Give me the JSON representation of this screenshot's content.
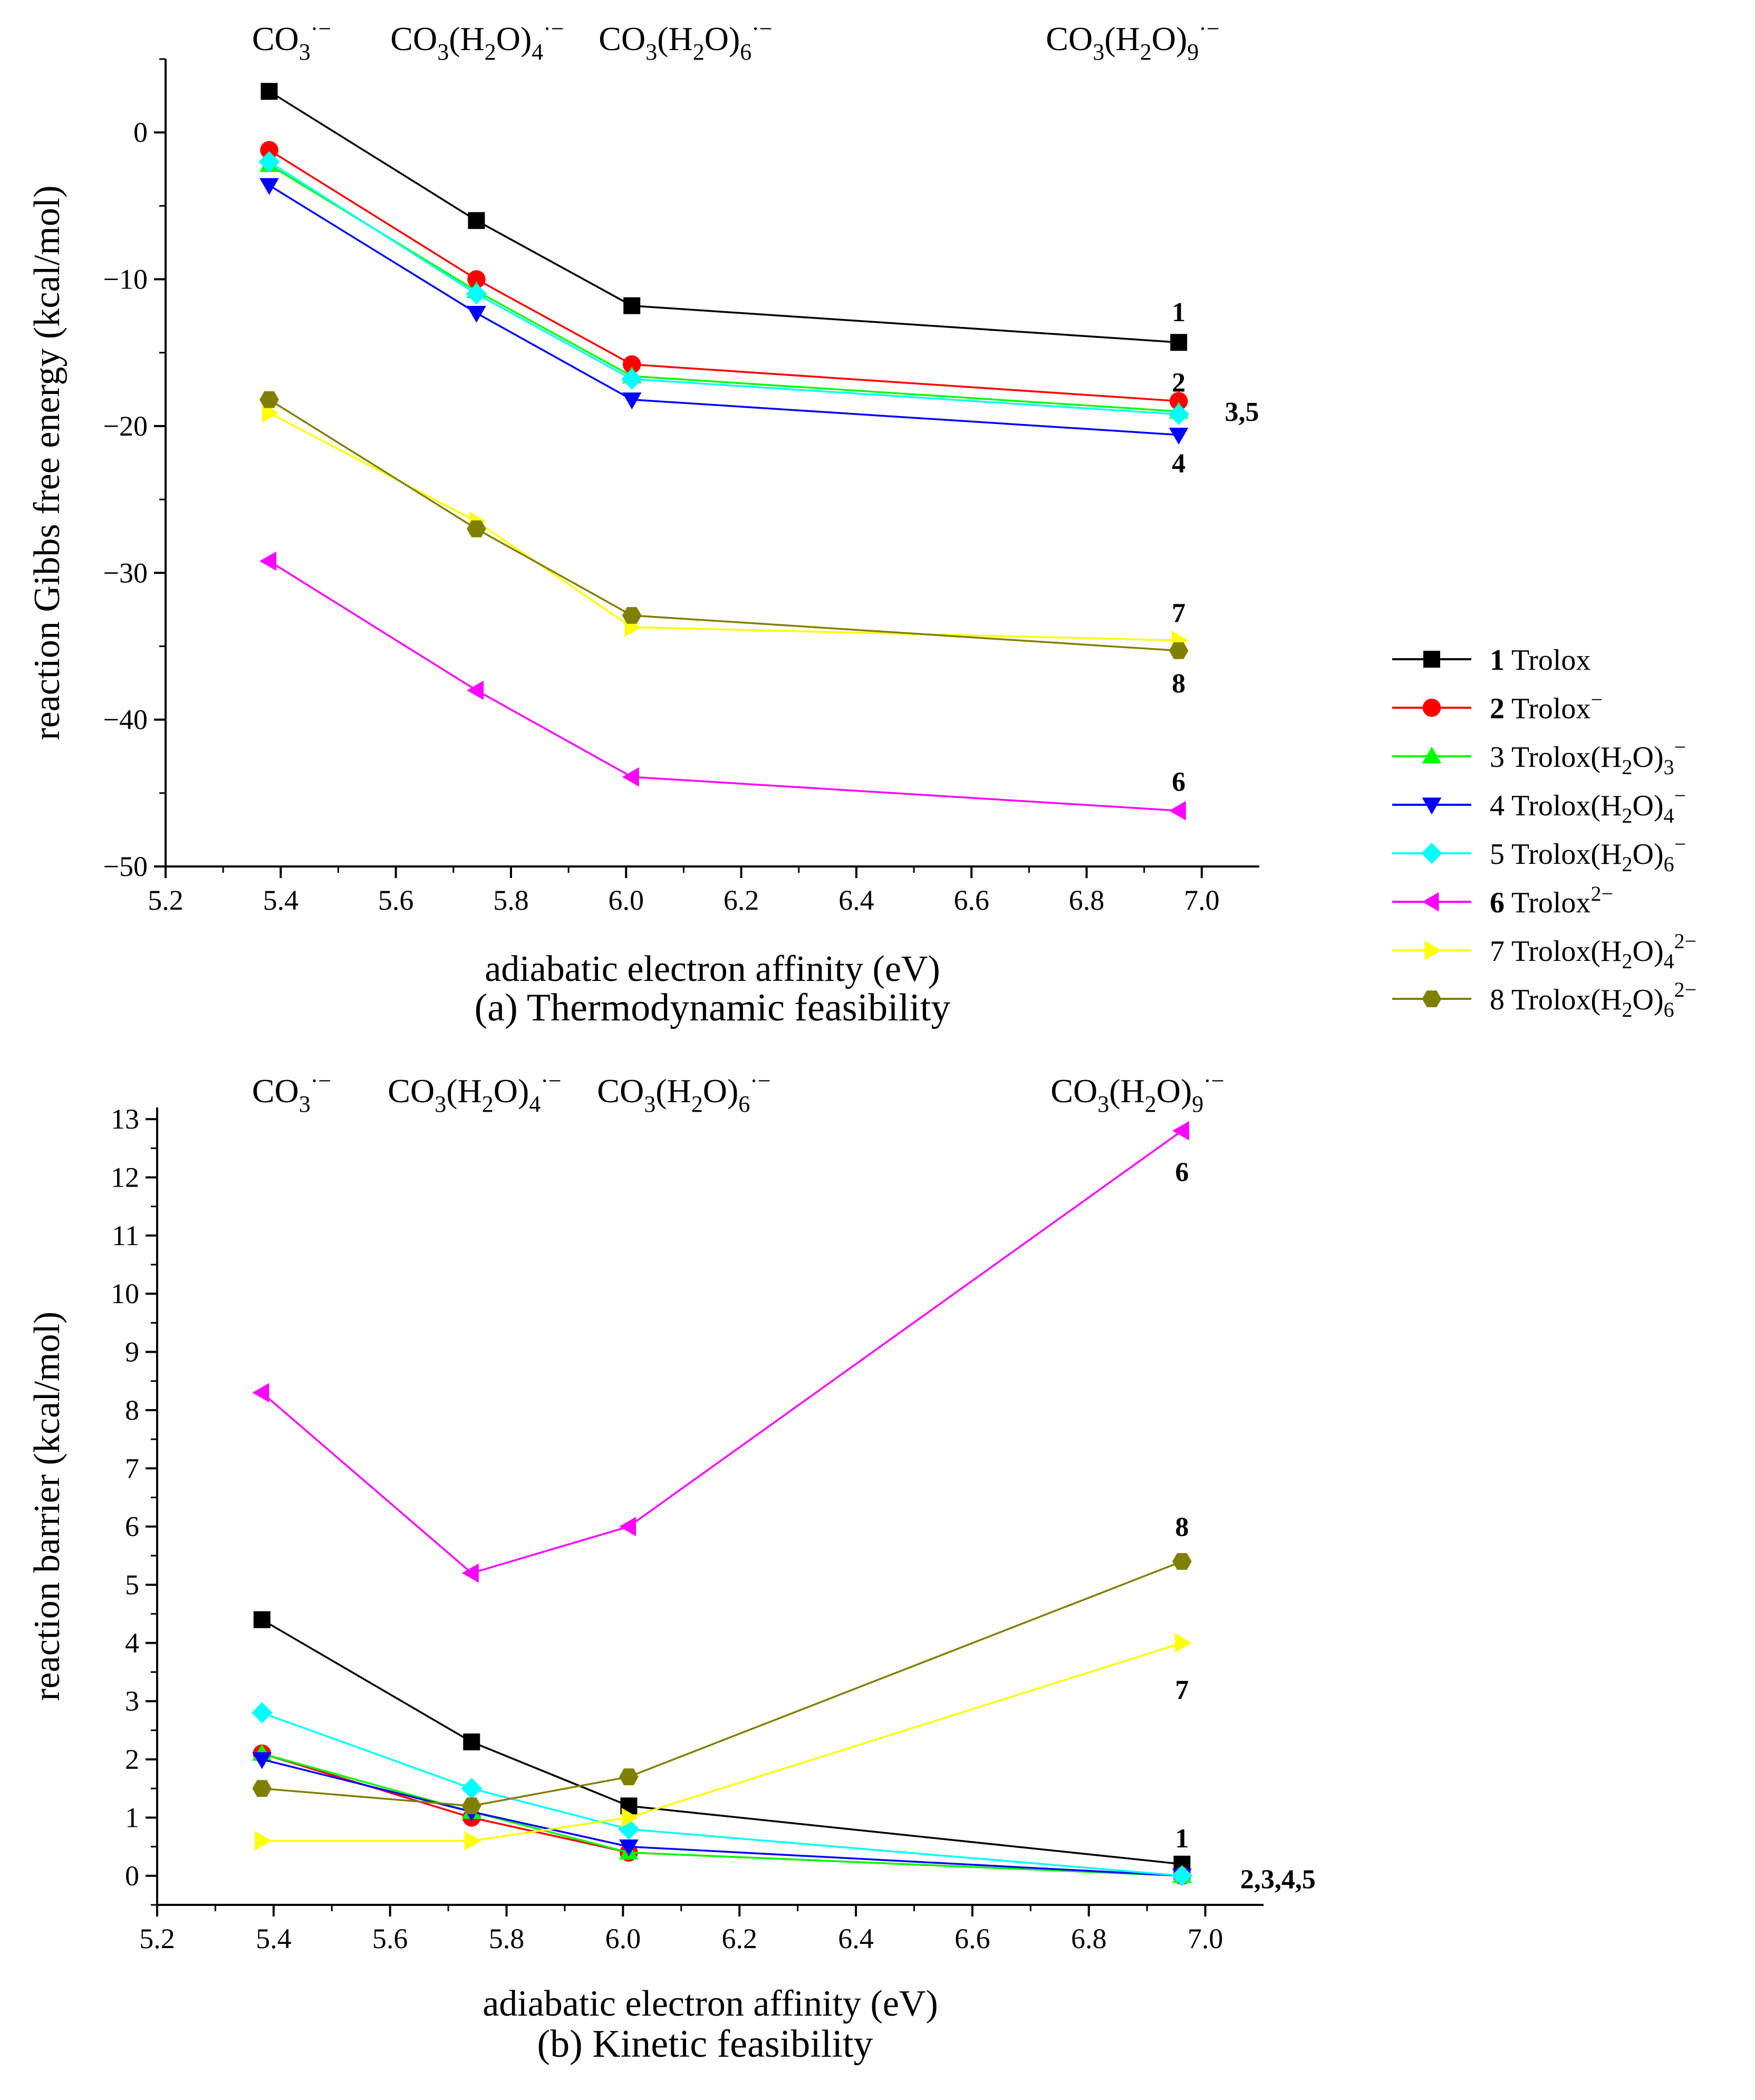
{
  "colors": {
    "1": "#000000",
    "2": "#ff0000",
    "3": "#00ff00",
    "4": "#0000ff",
    "5": "#00ffff",
    "6": "#ff00ff",
    "7": "#ffff00",
    "8": "#808000"
  },
  "legend": [
    {
      "id": "1",
      "num": "1",
      "bold": true,
      "base": "Trolox",
      "sub": "",
      "sup": "",
      "marker": "square"
    },
    {
      "id": "2",
      "num": "2",
      "bold": true,
      "base": "Trolox",
      "sub": "",
      "sup": "−",
      "marker": "circle"
    },
    {
      "id": "3",
      "num": "3",
      "bold": false,
      "base": "Trolox(H",
      "mid": "O)",
      "h2": "2",
      "sub": "3",
      "sup": "−",
      "marker": "triangle-up"
    },
    {
      "id": "4",
      "num": "4",
      "bold": false,
      "base": "Trolox(H",
      "mid": "O)",
      "h2": "2",
      "sub": "4",
      "sup": "−",
      "marker": "triangle-down"
    },
    {
      "id": "5",
      "num": "5",
      "bold": false,
      "base": "Trolox(H",
      "mid": "O)",
      "h2": "2",
      "sub": "6",
      "sup": "−",
      "marker": "diamond"
    },
    {
      "id": "6",
      "num": "6",
      "bold": true,
      "base": "Trolox",
      "sub": "",
      "sup": "2−",
      "marker": "triangle-left"
    },
    {
      "id": "7",
      "num": "7",
      "bold": false,
      "base": "Trolox(H",
      "mid": "O)",
      "h2": "2",
      "sub": "4",
      "sup": "2−",
      "marker": "triangle-right"
    },
    {
      "id": "8",
      "num": "8",
      "bold": false,
      "base": "Trolox(H",
      "mid": "O)",
      "h2": "2",
      "sub": "6",
      "sup": "2−",
      "marker": "hexagon"
    }
  ],
  "clusters": [
    {
      "x": 5.38,
      "base": "CO",
      "sub": "3",
      "sup": "·−",
      "water": ""
    },
    {
      "x": 5.74,
      "base": "CO",
      "sub": "3",
      "sup": "·−",
      "water": "4"
    },
    {
      "x": 6.01,
      "base": "CO",
      "sub": "3",
      "sup": "·−",
      "water": "6"
    },
    {
      "x": 6.96,
      "base": "CO",
      "sub": "3",
      "sup": "·−",
      "water": "9"
    }
  ],
  "chart_data": [
    {
      "type": "line",
      "title": "(a) Thermodynamic feasibility",
      "xlabel": "adiabatic electron affinity (eV)",
      "ylabel": "reaction Gibbs free energy (kcal/mol)",
      "xlim": [
        5.2,
        7.1
      ],
      "ylim": [
        -50,
        5
      ],
      "xticks": [
        5.2,
        5.4,
        5.6,
        5.8,
        6.0,
        6.2,
        6.4,
        6.6,
        6.8,
        7.0
      ],
      "xtick_labels": [
        "5.2",
        "5.4",
        "5.6",
        "5.8",
        "6.0",
        "6.2",
        "6.4",
        "6.6",
        "6.8",
        "7.0"
      ],
      "yticks": [
        0,
        -10,
        -20,
        -30,
        -40,
        -50
      ],
      "ytick_labels": [
        "0",
        "−10",
        "−20",
        "−30",
        "−40",
        "−50"
      ],
      "x": [
        5.38,
        5.74,
        6.01,
        6.96
      ],
      "series": [
        {
          "id": "1",
          "values": [
            2.8,
            -6.0,
            -11.8,
            -14.3
          ]
        },
        {
          "id": "2",
          "values": [
            -1.2,
            -10.0,
            -15.8,
            -18.3
          ]
        },
        {
          "id": "3",
          "values": [
            -2.2,
            -10.8,
            -16.6,
            -19.0
          ]
        },
        {
          "id": "4",
          "values": [
            -3.6,
            -12.3,
            -18.2,
            -20.6
          ]
        },
        {
          "id": "5",
          "values": [
            -2.0,
            -11.0,
            -16.8,
            -19.2
          ]
        },
        {
          "id": "6",
          "values": [
            -29.2,
            -38.0,
            -43.9,
            -46.2
          ]
        },
        {
          "id": "7",
          "values": [
            -19.1,
            -26.5,
            -33.7,
            -34.6
          ]
        },
        {
          "id": "8",
          "values": [
            -18.2,
            -27.0,
            -32.9,
            -35.3
          ]
        }
      ],
      "annotations": [
        {
          "text": "1",
          "x": 6.96,
          "y": -12.2
        },
        {
          "text": "2",
          "x": 6.96,
          "y": -17.0
        },
        {
          "text": "3,5",
          "x": 7.04,
          "y": -19.0
        },
        {
          "text": "4",
          "x": 6.96,
          "y": -22.5
        },
        {
          "text": "7",
          "x": 6.96,
          "y": -32.7
        },
        {
          "text": "8",
          "x": 6.96,
          "y": -37.5
        },
        {
          "text": "6",
          "x": 6.96,
          "y": -44.2
        }
      ]
    },
    {
      "type": "line",
      "title": "(b) Kinetic feasibility",
      "xlabel": "adiabatic electron affinity (eV)",
      "ylabel": "reaction barrier (kcal/mol)",
      "xlim": [
        5.2,
        7.1
      ],
      "ylim": [
        -0.5,
        13.2
      ],
      "xticks": [
        5.2,
        5.4,
        5.6,
        5.8,
        6.0,
        6.2,
        6.4,
        6.6,
        6.8,
        7.0
      ],
      "xtick_labels": [
        "5.2",
        "5.4",
        "5.6",
        "5.8",
        "6.0",
        "6.2",
        "6.4",
        "6.6",
        "6.8",
        "7.0"
      ],
      "yticks": [
        0,
        1,
        2,
        3,
        4,
        5,
        6,
        7,
        8,
        9,
        10,
        11,
        12,
        13
      ],
      "ytick_labels": [
        "0",
        "1",
        "2",
        "3",
        "4",
        "5",
        "6",
        "7",
        "8",
        "9",
        "10",
        "11",
        "12",
        "13"
      ],
      "x": [
        5.38,
        5.74,
        6.01,
        6.96
      ],
      "series": [
        {
          "id": "1",
          "values": [
            4.4,
            2.3,
            1.2,
            0.2
          ]
        },
        {
          "id": "2",
          "values": [
            2.1,
            1.0,
            0.4,
            0.0
          ]
        },
        {
          "id": "3",
          "values": [
            2.1,
            1.1,
            0.4,
            0.0
          ]
        },
        {
          "id": "4",
          "values": [
            2.0,
            1.1,
            0.5,
            0.0
          ]
        },
        {
          "id": "5",
          "values": [
            2.8,
            1.5,
            0.8,
            0.0
          ]
        },
        {
          "id": "6",
          "values": [
            8.3,
            5.2,
            6.0,
            12.8
          ]
        },
        {
          "id": "7",
          "values": [
            0.6,
            0.6,
            1.0,
            4.0
          ]
        },
        {
          "id": "8",
          "values": [
            1.5,
            1.2,
            1.7,
            5.4
          ]
        }
      ],
      "annotations": [
        {
          "text": "6",
          "x": 6.96,
          "y": 12.1
        },
        {
          "text": "8",
          "x": 6.96,
          "y": 6.0
        },
        {
          "text": "7",
          "x": 6.96,
          "y": 3.2
        },
        {
          "text": "1",
          "x": 6.96,
          "y": 0.65
        },
        {
          "text": "2,3,4,5",
          "x": 7.06,
          "y": -0.05
        }
      ]
    }
  ]
}
